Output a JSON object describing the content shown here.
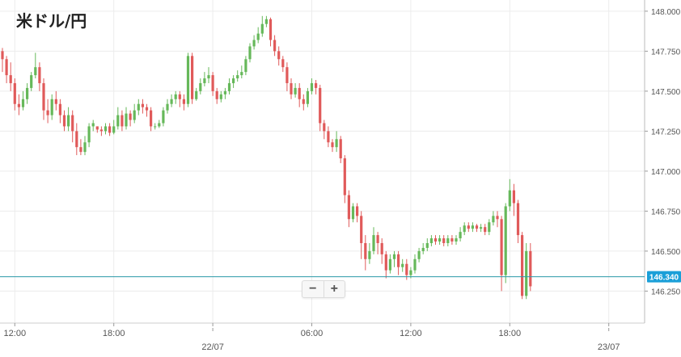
{
  "title": "米ドル/円",
  "zoom": {
    "minus": "−",
    "plus": "+"
  },
  "current_price": {
    "value": 146.34,
    "label": "146.340",
    "color": "#1a9fd8"
  },
  "colors": {
    "up": "#66b85a",
    "down": "#e05a5a",
    "grid": "#ececec",
    "line": "#2a9aa8",
    "axis_text": "#555555"
  },
  "chart_data": {
    "type": "candlestick",
    "title": "米ドル/円",
    "ylim": [
      146.05,
      148.07
    ],
    "yticks": [
      {
        "v": 148.0,
        "label": "148.000"
      },
      {
        "v": 147.75,
        "label": "147.750"
      },
      {
        "v": 147.5,
        "label": "147.500"
      },
      {
        "v": 147.25,
        "label": "147.250"
      },
      {
        "v": 147.0,
        "label": "147.000"
      },
      {
        "v": 146.75,
        "label": "146.750"
      },
      {
        "v": 146.5,
        "label": "146.500"
      },
      {
        "v": 146.25,
        "label": "146.250"
      }
    ],
    "xticks": [
      {
        "i": 3,
        "label": "12:00"
      },
      {
        "i": 27,
        "label": "18:00"
      },
      {
        "i": 51,
        "label": "22/07",
        "day": true
      },
      {
        "i": 75,
        "label": "06:00"
      },
      {
        "i": 99,
        "label": "12:00"
      },
      {
        "i": 123,
        "label": "18:00"
      },
      {
        "i": 147,
        "label": "23/07",
        "day": true
      }
    ],
    "candles": [
      [
        147.75,
        147.7,
        147.77,
        147.62
      ],
      [
        147.7,
        147.6,
        147.72,
        147.55
      ],
      [
        147.6,
        147.55,
        147.68,
        147.5
      ],
      [
        147.55,
        147.42,
        147.58,
        147.38
      ],
      [
        147.42,
        147.4,
        147.48,
        147.35
      ],
      [
        147.4,
        147.45,
        147.5,
        147.38
      ],
      [
        147.45,
        147.52,
        147.55,
        147.42
      ],
      [
        147.52,
        147.6,
        147.62,
        147.5
      ],
      [
        147.6,
        147.65,
        147.74,
        147.58
      ],
      [
        147.65,
        147.55,
        147.68,
        147.5
      ],
      [
        147.55,
        147.38,
        147.58,
        147.32
      ],
      [
        147.38,
        147.35,
        147.45,
        147.3
      ],
      [
        147.35,
        147.45,
        147.48,
        147.32
      ],
      [
        147.45,
        147.42,
        147.5,
        147.38
      ],
      [
        147.42,
        147.35,
        147.45,
        147.3
      ],
      [
        147.35,
        147.28,
        147.38,
        147.25
      ],
      [
        147.28,
        147.35,
        147.4,
        147.25
      ],
      [
        147.35,
        147.25,
        147.38,
        147.18
      ],
      [
        147.25,
        147.15,
        147.3,
        147.1
      ],
      [
        147.15,
        147.12,
        147.2,
        147.1
      ],
      [
        147.12,
        147.18,
        147.22,
        147.1
      ],
      [
        147.18,
        147.28,
        147.3,
        147.15
      ],
      [
        147.28,
        147.3,
        147.32,
        147.25
      ],
      [
        147.28,
        147.26,
        147.28,
        147.24
      ],
      [
        147.26,
        147.25,
        147.28,
        147.22
      ],
      [
        147.25,
        147.28,
        147.3,
        147.23
      ],
      [
        147.28,
        147.24,
        147.3,
        147.22
      ],
      [
        147.24,
        147.28,
        147.32,
        147.23
      ],
      [
        147.28,
        147.35,
        147.4,
        147.26
      ],
      [
        147.35,
        147.28,
        147.38,
        147.25
      ],
      [
        147.28,
        147.36,
        147.4,
        147.26
      ],
      [
        147.36,
        147.32,
        147.38,
        147.28
      ],
      [
        147.32,
        147.38,
        147.42,
        147.3
      ],
      [
        147.38,
        147.42,
        147.45,
        147.35
      ],
      [
        147.42,
        147.4,
        147.45,
        147.36
      ],
      [
        147.4,
        147.38,
        147.42,
        147.34
      ],
      [
        147.38,
        147.28,
        147.4,
        147.25
      ],
      [
        147.28,
        147.28,
        147.3,
        147.26
      ],
      [
        147.28,
        147.3,
        147.32,
        147.27
      ],
      [
        147.3,
        147.38,
        147.4,
        147.28
      ],
      [
        147.38,
        147.42,
        147.45,
        147.36
      ],
      [
        147.42,
        147.45,
        147.48,
        147.4
      ],
      [
        147.45,
        147.48,
        147.5,
        147.42
      ],
      [
        147.48,
        147.45,
        147.5,
        147.4
      ],
      [
        147.45,
        147.42,
        147.48,
        147.38
      ],
      [
        147.42,
        147.72,
        147.74,
        147.4
      ],
      [
        147.72,
        147.45,
        147.74,
        147.42
      ],
      [
        147.45,
        147.5,
        147.52,
        147.44
      ],
      [
        147.5,
        147.55,
        147.58,
        147.48
      ],
      [
        147.55,
        147.58,
        147.62,
        147.53
      ],
      [
        147.58,
        147.6,
        147.65,
        147.55
      ],
      [
        147.6,
        147.5,
        147.62,
        147.47
      ],
      [
        147.5,
        147.45,
        147.52,
        147.42
      ],
      [
        147.45,
        147.48,
        147.5,
        147.43
      ],
      [
        147.48,
        147.5,
        147.52,
        147.45
      ],
      [
        147.5,
        147.55,
        147.58,
        147.48
      ],
      [
        147.55,
        147.58,
        147.6,
        147.52
      ],
      [
        147.58,
        147.6,
        147.63,
        147.56
      ],
      [
        147.6,
        147.62,
        147.66,
        147.58
      ],
      [
        147.62,
        147.7,
        147.72,
        147.6
      ],
      [
        147.7,
        147.78,
        147.8,
        147.68
      ],
      [
        147.78,
        147.82,
        147.85,
        147.76
      ],
      [
        147.82,
        147.86,
        147.9,
        147.8
      ],
      [
        147.86,
        147.92,
        147.97,
        147.84
      ],
      [
        147.92,
        147.95,
        147.97,
        147.9
      ],
      [
        147.95,
        147.82,
        147.96,
        147.78
      ],
      [
        147.82,
        147.75,
        147.85,
        147.72
      ],
      [
        147.75,
        147.7,
        147.78,
        147.66
      ],
      [
        147.7,
        147.65,
        147.72,
        147.62
      ],
      [
        147.65,
        147.55,
        147.68,
        147.5
      ],
      [
        147.55,
        147.48,
        147.58,
        147.45
      ],
      [
        147.48,
        147.52,
        147.55,
        147.46
      ],
      [
        147.52,
        147.45,
        147.55,
        147.4
      ],
      [
        147.45,
        147.42,
        147.48,
        147.38
      ],
      [
        147.42,
        147.5,
        147.52,
        147.4
      ],
      [
        147.5,
        147.55,
        147.58,
        147.48
      ],
      [
        147.55,
        147.52,
        147.57,
        147.48
      ],
      [
        147.52,
        147.3,
        147.54,
        147.25
      ],
      [
        147.3,
        147.25,
        147.32,
        147.2
      ],
      [
        147.25,
        147.18,
        147.28,
        147.15
      ],
      [
        147.18,
        147.15,
        147.2,
        147.12
      ],
      [
        147.15,
        147.2,
        147.25,
        147.12
      ],
      [
        147.2,
        147.08,
        147.22,
        147.05
      ],
      [
        147.08,
        146.85,
        147.1,
        146.8
      ],
      [
        146.85,
        146.7,
        146.88,
        146.65
      ],
      [
        146.7,
        146.78,
        146.8,
        146.68
      ],
      [
        146.78,
        146.72,
        146.8,
        146.68
      ],
      [
        146.72,
        146.55,
        146.75,
        146.45
      ],
      [
        146.55,
        146.45,
        146.6,
        146.38
      ],
      [
        146.45,
        146.5,
        146.55,
        146.42
      ],
      [
        146.5,
        146.6,
        146.65,
        146.48
      ],
      [
        146.6,
        146.55,
        146.62,
        146.48
      ],
      [
        146.55,
        146.48,
        146.58,
        146.42
      ],
      [
        146.48,
        146.38,
        146.5,
        146.33
      ],
      [
        146.38,
        146.45,
        146.48,
        146.36
      ],
      [
        146.45,
        146.48,
        146.5,
        146.4
      ],
      [
        146.48,
        146.4,
        146.5,
        146.35
      ],
      [
        146.4,
        146.42,
        146.45,
        146.37
      ],
      [
        146.42,
        146.35,
        146.45,
        146.32
      ],
      [
        146.35,
        146.38,
        146.4,
        146.33
      ],
      [
        146.38,
        146.45,
        146.48,
        146.36
      ],
      [
        146.45,
        146.5,
        146.52,
        146.43
      ],
      [
        146.5,
        146.52,
        146.55,
        146.48
      ],
      [
        146.52,
        146.55,
        146.58,
        146.5
      ],
      [
        146.55,
        146.58,
        146.6,
        146.53
      ],
      [
        146.58,
        146.56,
        146.6,
        146.54
      ],
      [
        146.56,
        146.58,
        146.6,
        146.54
      ],
      [
        146.58,
        146.55,
        146.6,
        146.53
      ],
      [
        146.55,
        146.58,
        146.6,
        146.53
      ],
      [
        146.58,
        146.56,
        146.6,
        146.54
      ],
      [
        146.56,
        146.58,
        146.6,
        146.54
      ],
      [
        146.58,
        146.62,
        146.65,
        146.56
      ],
      [
        146.62,
        146.66,
        146.68,
        146.6
      ],
      [
        146.66,
        146.64,
        146.68,
        146.62
      ],
      [
        146.64,
        146.66,
        146.68,
        146.62
      ],
      [
        146.66,
        146.64,
        146.67,
        146.62
      ],
      [
        146.64,
        146.65,
        146.67,
        146.62
      ],
      [
        146.65,
        146.62,
        146.67,
        146.6
      ],
      [
        146.62,
        146.68,
        146.7,
        146.6
      ],
      [
        146.68,
        146.72,
        146.75,
        146.66
      ],
      [
        146.72,
        146.7,
        146.75,
        146.65
      ],
      [
        146.7,
        146.35,
        146.72,
        146.25
      ],
      [
        146.35,
        146.78,
        146.8,
        146.3
      ],
      [
        146.78,
        146.88,
        146.95,
        146.75
      ],
      [
        146.88,
        146.8,
        146.92,
        146.72
      ],
      [
        146.8,
        146.6,
        146.82,
        146.55
      ],
      [
        146.6,
        146.22,
        146.62,
        146.2
      ],
      [
        146.22,
        146.5,
        146.55,
        146.2
      ],
      [
        146.5,
        146.28,
        146.55,
        146.25
      ]
    ]
  }
}
